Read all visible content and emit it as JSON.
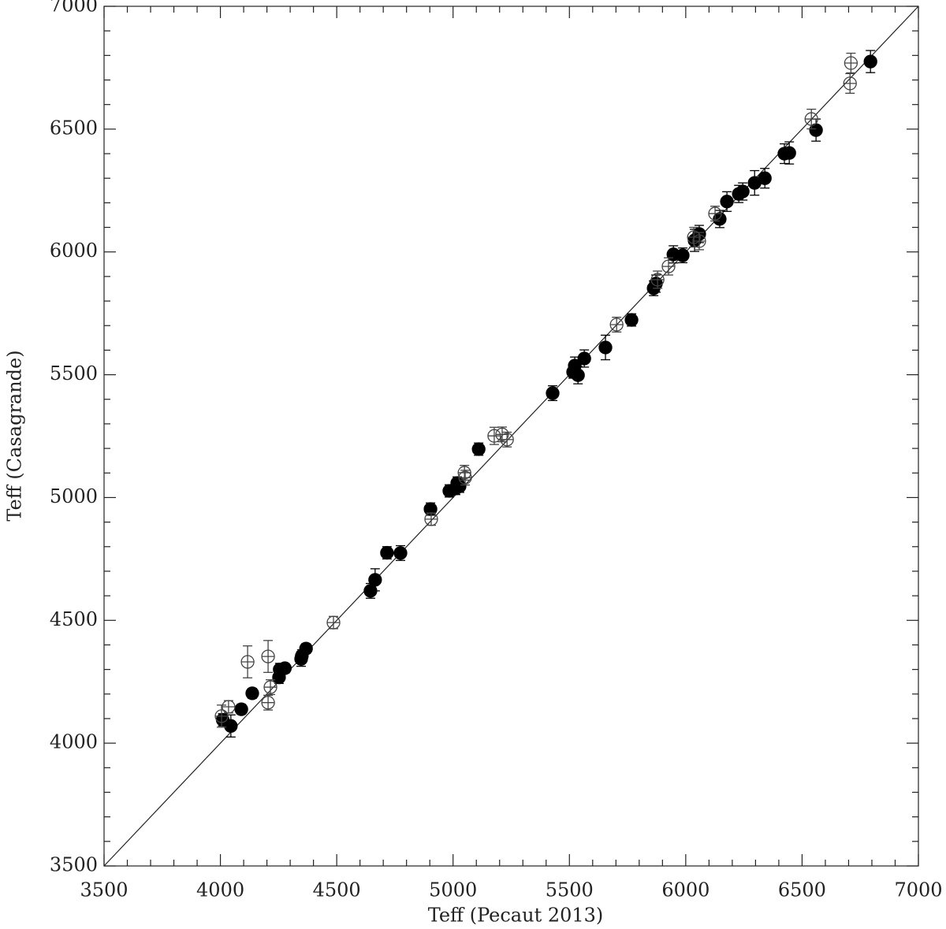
{
  "chart_data": {
    "type": "scatter",
    "x_label": "Teff (Pecaut 2013)",
    "y_label": "Teff (Casagrande)",
    "xlim": [
      3500,
      7000
    ],
    "ylim": [
      3500,
      7000
    ],
    "xticks": [
      3500,
      4000,
      4500,
      5000,
      5500,
      6000,
      6500,
      7000
    ],
    "yticks": [
      3500,
      4000,
      4500,
      5000,
      5500,
      6000,
      6500,
      7000
    ],
    "identity_line": true,
    "series": [
      {
        "color": "#000000",
        "filled": true,
        "x": [
          4010,
          4045,
          4090,
          4137,
          4252,
          4255,
          4277,
          4347,
          4350,
          4368,
          4645,
          4665,
          4716,
          4774,
          4903,
          4984,
          5011,
          5018,
          5028,
          5110,
          5428,
          5516,
          5523,
          5537,
          5564,
          5655,
          5767,
          5862,
          5872,
          5947,
          5987,
          6038,
          6058,
          6146,
          6177,
          6228,
          6245,
          6296,
          6340,
          6424,
          6445,
          6560,
          6794
        ],
        "y": [
          4095,
          4070,
          4138,
          4203,
          4268,
          4300,
          4305,
          4343,
          4355,
          4385,
          4620,
          4665,
          4775,
          4774,
          4953,
          5027,
          5037,
          5059,
          5046,
          5197,
          5425,
          5511,
          5537,
          5498,
          5566,
          5611,
          5723,
          5852,
          5871,
          5990,
          5986,
          6047,
          6073,
          6134,
          6205,
          6236,
          6246,
          6281,
          6300,
          6400,
          6403,
          6496,
          6775
        ],
        "yerr": [
          25,
          45,
          20,
          20,
          25,
          25,
          20,
          30,
          25,
          20,
          30,
          45,
          25,
          30,
          25,
          25,
          25,
          25,
          25,
          25,
          30,
          25,
          35,
          35,
          35,
          50,
          25,
          30,
          35,
          35,
          30,
          45,
          35,
          35,
          40,
          35,
          35,
          50,
          40,
          40,
          45,
          45,
          45
        ]
      },
      {
        "color": "#444444",
        "filled": false,
        "x": [
          4005,
          4035,
          4117,
          4205,
          4205,
          4215,
          4486,
          4906,
          5049,
          5052,
          5177,
          5211,
          5232,
          5703,
          5879,
          5926,
          6035,
          6058,
          6126,
          6540,
          6706,
          6710
        ],
        "y": [
          4110,
          4148,
          4331,
          4353,
          4165,
          4228,
          4491,
          4912,
          5101,
          5081,
          5251,
          5257,
          5236,
          5704,
          5887,
          5941,
          6060,
          6044,
          6156,
          6541,
          6686,
          6769
        ],
        "yerr": [
          45,
          25,
          65,
          65,
          30,
          30,
          25,
          25,
          30,
          30,
          35,
          30,
          30,
          30,
          35,
          35,
          40,
          35,
          30,
          40,
          40,
          40
        ]
      }
    ]
  }
}
